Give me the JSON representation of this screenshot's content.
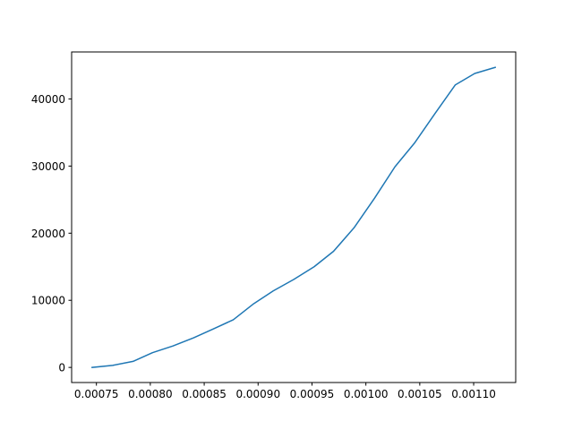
{
  "chart_data": {
    "type": "line",
    "title": "",
    "xlabel": "",
    "ylabel": "",
    "xlim": [
      0.000727,
      0.001139
    ],
    "ylim": [
      -2250,
      47000
    ],
    "grid": false,
    "x_ticks": [
      {
        "value": 0.00075,
        "label": "0.00075"
      },
      {
        "value": 0.0008,
        "label": "0.00080"
      },
      {
        "value": 0.00085,
        "label": "0.00085"
      },
      {
        "value": 0.0009,
        "label": "0.00090"
      },
      {
        "value": 0.00095,
        "label": "0.00095"
      },
      {
        "value": 0.001,
        "label": "0.00100"
      },
      {
        "value": 0.00105,
        "label": "0.00105"
      },
      {
        "value": 0.0011,
        "label": "0.00110"
      }
    ],
    "y_ticks": [
      {
        "value": 0,
        "label": "0"
      },
      {
        "value": 10000,
        "label": "10000"
      },
      {
        "value": 20000,
        "label": "20000"
      },
      {
        "value": 30000,
        "label": "30000"
      },
      {
        "value": 40000,
        "label": "40000"
      }
    ],
    "series": [
      {
        "color": "#1f77b4",
        "x": [
          0.000746,
          0.000765,
          0.000784,
          0.000802,
          0.000821,
          0.00084,
          0.000858,
          0.000877,
          0.000896,
          0.000914,
          0.000933,
          0.000952,
          0.00097,
          0.000989,
          0.001008,
          0.001027,
          0.001045,
          0.001064,
          0.001083,
          0.001101,
          0.00112
        ],
        "values": [
          0,
          300,
          900,
          2200,
          3200,
          4400,
          5700,
          7100,
          9500,
          11400,
          13100,
          15000,
          17300,
          20800,
          25200,
          29900,
          33400,
          37800,
          42100,
          43800,
          44700
        ]
      }
    ]
  }
}
